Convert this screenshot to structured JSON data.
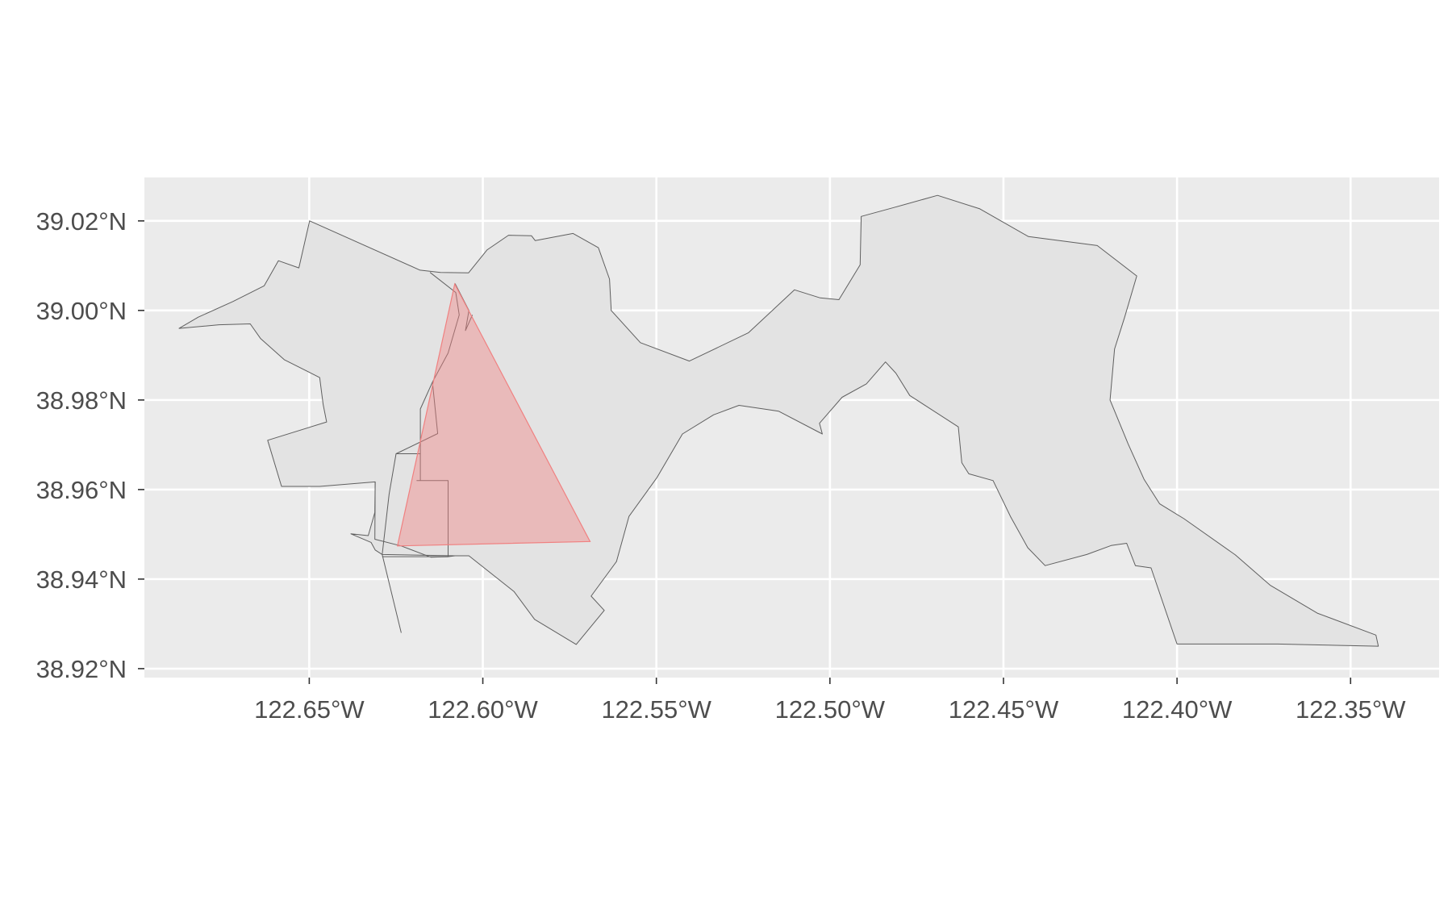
{
  "chart_data": {
    "type": "map",
    "x_axis": {
      "range": [
        -122.6975,
        -122.3245
      ],
      "ticks": [
        -122.65,
        -122.6,
        -122.55,
        -122.5,
        -122.45,
        -122.4,
        -122.35
      ],
      "tick_labels": [
        "122.65°W",
        "122.60°W",
        "122.55°W",
        "122.50°W",
        "122.45°W",
        "122.40°W",
        "122.35°W"
      ]
    },
    "y_axis": {
      "range": [
        38.918,
        39.0297
      ],
      "ticks": [
        38.92,
        38.94,
        38.96,
        38.98,
        39.0,
        39.02
      ],
      "tick_labels": [
        "38.92°N",
        "38.94°N",
        "38.96°N",
        "38.98°N",
        "39.00°N",
        "39.02°N"
      ]
    },
    "grid": true,
    "colors": {
      "panel_background": "#ebebeb",
      "grid_line": "#ffffff",
      "region_fill": "#e3e3e3",
      "region_stroke": "#5f5f5f",
      "triangle_fill": "#f08080",
      "triangle_stroke": "#f08080"
    },
    "triangle": [
      [
        -122.6081,
        39.0059
      ],
      [
        -122.6246,
        38.9474
      ],
      [
        -122.5691,
        38.9484
      ]
    ],
    "region_outer": [
      [
        -122.6499,
        39.02
      ],
      [
        -122.6181,
        39.009
      ],
      [
        -122.6122,
        39.0085
      ],
      [
        -122.6041,
        39.0084
      ],
      [
        -122.5988,
        39.0135
      ],
      [
        -122.5926,
        39.0168
      ],
      [
        -122.586,
        39.0167
      ],
      [
        -122.5849,
        39.0156
      ],
      [
        -122.574,
        39.0172
      ],
      [
        -122.5667,
        39.014
      ],
      [
        -122.5635,
        39.007
      ],
      [
        -122.563,
        39.0
      ],
      [
        -122.5546,
        38.9928
      ],
      [
        -122.5405,
        38.9887
      ],
      [
        -122.5235,
        38.995
      ],
      [
        -122.5102,
        39.0046
      ],
      [
        -122.5028,
        39.0028
      ],
      [
        -122.4974,
        39.0024
      ],
      [
        -122.4913,
        39.0102
      ],
      [
        -122.491,
        39.021
      ],
      [
        -122.4815,
        39.023
      ],
      [
        -122.469,
        39.0257
      ],
      [
        -122.4568,
        39.0227
      ],
      [
        -122.4428,
        39.0165
      ],
      [
        -122.423,
        39.0145
      ],
      [
        -122.4116,
        39.0077
      ],
      [
        -122.4151,
        38.9985
      ],
      [
        -122.418,
        38.9914
      ],
      [
        -122.4193,
        38.98
      ],
      [
        -122.4141,
        38.9702
      ],
      [
        -122.4095,
        38.9623
      ],
      [
        -122.405,
        38.9568
      ],
      [
        -122.398,
        38.9535
      ],
      [
        -122.3832,
        38.9454
      ],
      [
        -122.3731,
        38.9386
      ],
      [
        -122.3596,
        38.9324
      ],
      [
        -122.3427,
        38.9275
      ],
      [
        -122.342,
        38.925
      ],
      [
        -122.371,
        38.9255
      ],
      [
        -122.4,
        38.9255
      ],
      [
        -122.4075,
        38.9425
      ],
      [
        -122.412,
        38.943
      ],
      [
        -122.4145,
        38.948
      ],
      [
        -122.419,
        38.9475
      ],
      [
        -122.426,
        38.9455
      ],
      [
        -122.438,
        38.943
      ],
      [
        -122.443,
        38.947
      ],
      [
        -122.448,
        38.954
      ],
      [
        -122.453,
        38.962
      ],
      [
        -122.46,
        38.9635
      ],
      [
        -122.462,
        38.966
      ],
      [
        -122.463,
        38.974
      ],
      [
        -122.477,
        38.981
      ],
      [
        -122.481,
        38.986
      ],
      [
        -122.484,
        38.9885
      ],
      [
        -122.4895,
        38.9836
      ],
      [
        -122.4965,
        38.9806
      ],
      [
        -122.503,
        38.9748
      ],
      [
        -122.5022,
        38.9724
      ],
      [
        -122.5148,
        38.9775
      ],
      [
        -122.5262,
        38.9788
      ],
      [
        -122.5335,
        38.9767
      ],
      [
        -122.5425,
        38.9724
      ],
      [
        -122.5498,
        38.9627
      ],
      [
        -122.5579,
        38.954
      ],
      [
        -122.5615,
        38.9439
      ],
      [
        -122.5688,
        38.9362
      ],
      [
        -122.565,
        38.933
      ],
      [
        -122.5731,
        38.9254
      ],
      [
        -122.5851,
        38.931
      ],
      [
        -122.591,
        38.9372
      ],
      [
        -122.604,
        38.9452
      ],
      [
        -122.608,
        38.9452
      ],
      [
        -122.629,
        38.9455
      ],
      [
        -122.631,
        38.9465
      ],
      [
        -122.6322,
        38.9482
      ],
      [
        -122.638,
        38.9501
      ],
      [
        -122.633,
        38.9497
      ],
      [
        -122.6311,
        38.9549
      ],
      [
        -122.631,
        38.9617
      ],
      [
        -122.647,
        38.9607
      ],
      [
        -122.658,
        38.9607
      ],
      [
        -122.662,
        38.971
      ],
      [
        -122.645,
        38.9751
      ],
      [
        -122.646,
        38.979
      ],
      [
        -122.647,
        38.985
      ],
      [
        -122.6572,
        38.989
      ],
      [
        -122.664,
        38.9937
      ],
      [
        -122.667,
        38.997
      ],
      [
        -122.676,
        38.9968
      ],
      [
        -122.6875,
        38.996
      ],
      [
        -122.682,
        38.9985
      ],
      [
        -122.672,
        39.002
      ],
      [
        -122.663,
        39.0055
      ],
      [
        -122.6589,
        39.0111
      ],
      [
        -122.653,
        39.0095
      ],
      [
        -122.6499,
        39.02
      ]
    ],
    "region_inner_lines": [
      [
        [
          -122.6152,
          39.0085
        ],
        [
          -122.6078,
          39.004
        ],
        [
          -122.6068,
          38.999
        ],
        [
          -122.61,
          38.9905
        ],
        [
          -122.6145,
          38.984
        ],
        [
          -122.613,
          38.9725
        ],
        [
          -122.625,
          38.968
        ],
        [
          -122.627,
          38.959
        ],
        [
          -122.629,
          38.9455
        ],
        [
          -122.6235,
          38.928
        ]
      ],
      [
        [
          -122.631,
          38.9617
        ],
        [
          -122.6311,
          38.9489
        ],
        [
          -122.6235,
          38.9474
        ],
        [
          -122.615,
          38.9449
        ],
        [
          -122.61,
          38.945
        ]
      ],
      [
        [
          -122.625,
          38.968
        ],
        [
          -122.618,
          38.968
        ],
        [
          -122.618,
          38.962
        ],
        [
          -122.619,
          38.962
        ],
        [
          -122.61,
          38.962
        ],
        [
          -122.61,
          38.945
        ]
      ],
      [
        [
          -122.629,
          38.945
        ],
        [
          -122.61,
          38.945
        ],
        [
          -122.608,
          38.9452
        ]
      ],
      [
        [
          -122.618,
          38.968
        ],
        [
          -122.618,
          38.978
        ],
        [
          -122.6145,
          38.984
        ]
      ],
      [
        [
          -122.608,
          39.006
        ],
        [
          -122.604,
          39.0
        ],
        [
          -122.605,
          38.9955
        ],
        [
          -122.603,
          38.999
        ]
      ]
    ]
  }
}
